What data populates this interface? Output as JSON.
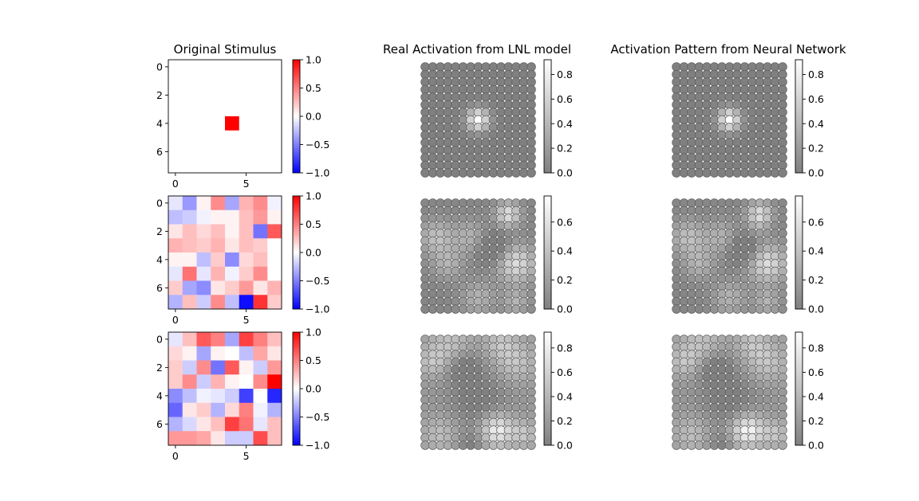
{
  "chart_data": [
    {
      "type": "heatmap",
      "title": "Original Stimulus",
      "rows": 8,
      "cols": 8,
      "xticks": [
        0,
        5
      ],
      "yticks": [
        0,
        2,
        4,
        6
      ],
      "colormap": "bwr",
      "cbar": {
        "min": -1.0,
        "max": 1.0,
        "ticks": [
          "1.0",
          "0.5",
          "0.0",
          "−0.5",
          "−1.0"
        ]
      },
      "panels": [
        {
          "values": [
            [
              0,
              0,
              0,
              0,
              0,
              0,
              0,
              0
            ],
            [
              0,
              0,
              0,
              0,
              0,
              0,
              0,
              0
            ],
            [
              0,
              0,
              0,
              0,
              0,
              0,
              0,
              0
            ],
            [
              0,
              0,
              0,
              0,
              0,
              0,
              0,
              0
            ],
            [
              0,
              0,
              0,
              0,
              1,
              0,
              0,
              0
            ],
            [
              0,
              0,
              0,
              0,
              0,
              0,
              0,
              0
            ],
            [
              0,
              0,
              0,
              0,
              0,
              0,
              0,
              0
            ],
            [
              0,
              0,
              0,
              0,
              0,
              0,
              0,
              0
            ]
          ]
        },
        {
          "values": [
            [
              -0.1,
              -0.4,
              0.05,
              0.45,
              -0.35,
              0.3,
              0.45,
              -0.05
            ],
            [
              -0.25,
              -0.2,
              -0.05,
              0.05,
              0.05,
              0.25,
              0.4,
              0.05
            ],
            [
              0.1,
              0.25,
              0.15,
              0.25,
              0.05,
              0.25,
              -0.55,
              0.65
            ],
            [
              0.3,
              0.25,
              0.2,
              0.3,
              0.1,
              0.25,
              0.2,
              0.0
            ],
            [
              0.05,
              0.05,
              -0.25,
              0.2,
              -0.45,
              0.15,
              0.25,
              0.0
            ],
            [
              -0.1,
              0.55,
              -0.1,
              0.3,
              -0.05,
              0.2,
              0.45,
              0.0
            ],
            [
              0.2,
              -0.35,
              -0.45,
              0.1,
              0.2,
              0.4,
              0.1,
              0.3
            ],
            [
              -0.3,
              0.25,
              -0.2,
              0.45,
              -0.25,
              -0.95,
              0.8,
              0.2
            ]
          ]
        },
        {
          "values": [
            [
              -0.1,
              0.25,
              0.65,
              0.5,
              -0.35,
              0.75,
              0.5,
              0.25
            ],
            [
              0.15,
              0.05,
              -0.35,
              0.05,
              0.0,
              -0.25,
              0.35,
              0.1
            ],
            [
              0.2,
              -0.2,
              0.45,
              -0.55,
              0.65,
              0.05,
              -0.2,
              0.4
            ],
            [
              0.2,
              0.45,
              -0.2,
              0.3,
              0.05,
              0.0,
              0.45,
              1.0
            ],
            [
              -0.45,
              -0.25,
              -0.05,
              -0.1,
              -0.2,
              -0.75,
              0.0,
              -0.85
            ],
            [
              -0.6,
              0.1,
              0.2,
              -0.3,
              0.15,
              0.5,
              -0.05,
              -0.3
            ],
            [
              -0.3,
              -0.15,
              0.1,
              0.25,
              0.75,
              0.55,
              -0.1,
              0.25
            ],
            [
              0.4,
              0.4,
              0.35,
              0.1,
              -0.2,
              -0.2,
              0.7,
              0.25
            ]
          ]
        }
      ]
    },
    {
      "type": "scatter",
      "title": "Real Activation from LNL model",
      "grid": "15x15",
      "colormap": "gray",
      "panels": [
        {
          "cbar": {
            "min": 0.0,
            "max": 0.92,
            "ticks": [
              "0.8",
              "0.6",
              "0.4",
              "0.2",
              "0.0"
            ]
          },
          "pattern": "center_peak"
        },
        {
          "cbar": {
            "min": 0.0,
            "max": 0.78,
            "ticks": [
              "0.6",
              "0.4",
              "0.2",
              "0.0"
            ]
          },
          "pattern": "noise_a"
        },
        {
          "cbar": {
            "min": 0.0,
            "max": 0.93,
            "ticks": [
              "0.8",
              "0.6",
              "0.4",
              "0.2",
              "0.0"
            ]
          },
          "pattern": "noise_b"
        }
      ]
    },
    {
      "type": "scatter",
      "title": "Activation Pattern from Neural Network",
      "grid": "15x15",
      "colormap": "gray",
      "panels": [
        {
          "cbar": {
            "min": 0.0,
            "max": 0.92,
            "ticks": [
              "0.8",
              "0.6",
              "0.4",
              "0.2",
              "0.0"
            ]
          },
          "pattern": "center_peak"
        },
        {
          "cbar": {
            "min": 0.0,
            "max": 0.78,
            "ticks": [
              "0.6",
              "0.4",
              "0.2",
              "0.0"
            ]
          },
          "pattern": "noise_a"
        },
        {
          "cbar": {
            "min": 0.0,
            "max": 0.93,
            "ticks": [
              "0.8",
              "0.6",
              "0.4",
              "0.2",
              "0.0"
            ]
          },
          "pattern": "noise_b"
        }
      ]
    }
  ]
}
